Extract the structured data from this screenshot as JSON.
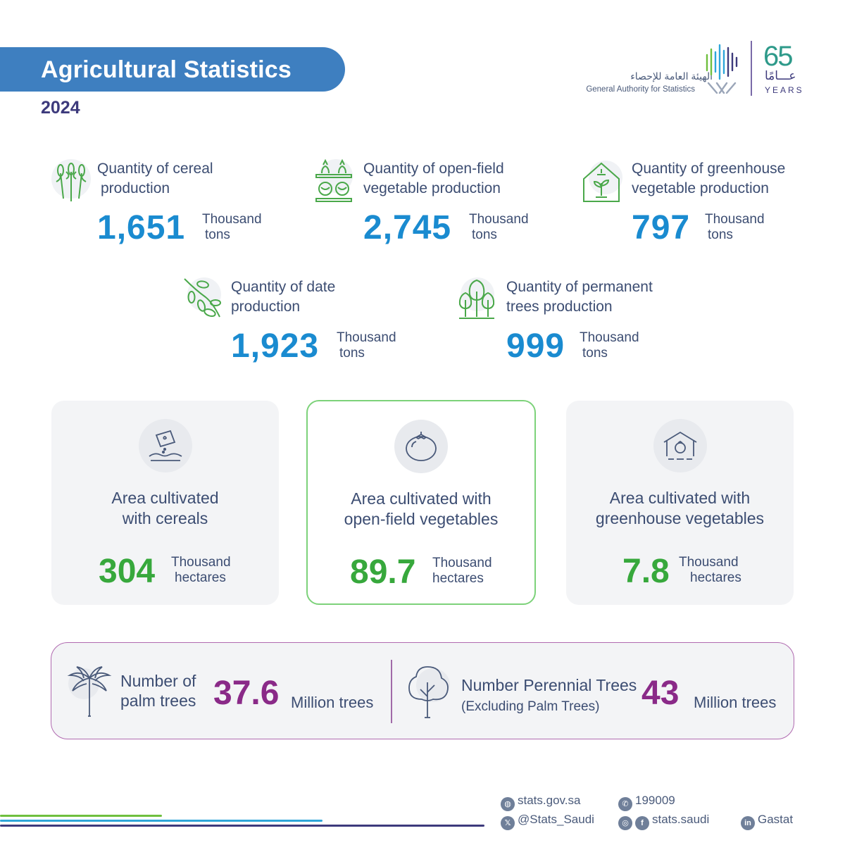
{
  "header": {
    "title": "Agricultural Statistics",
    "year": "2024"
  },
  "logo": {
    "arabic_name": "الهيئة العامة للإحصاء",
    "english_name": "General Authority for Statistics",
    "anniversary_number": "65",
    "anniversary_arabic": "عـــامًا",
    "anniversary_years": "YEARS"
  },
  "production": [
    {
      "icon": "wheat-icon",
      "label_line1": "Quantity of cereal",
      "label_line2": "production",
      "value": "1,651",
      "unit_line1": "Thousand",
      "unit_line2": "tons"
    },
    {
      "icon": "vegetable-crates-icon",
      "label_line1": "Quantity of open-field",
      "label_line2": "vegetable production",
      "value": "2,745",
      "unit_line1": "Thousand",
      "unit_line2": "tons"
    },
    {
      "icon": "greenhouse-icon",
      "label_line1": "Quantity of greenhouse",
      "label_line2": "vegetable production",
      "value": "797",
      "unit_line1": "Thousand",
      "unit_line2": "tons"
    },
    {
      "icon": "dates-icon",
      "label_line1": "Quantity of date",
      "label_line2": "production",
      "value": "1,923",
      "unit_line1": "Thousand",
      "unit_line2": "tons"
    },
    {
      "icon": "trees-icon",
      "label_line1": "Quantity of permanent",
      "label_line2": "trees production",
      "value": "999",
      "unit_line1": "Thousand",
      "unit_line2": "tons"
    }
  ],
  "areas": [
    {
      "icon": "seed-packet-icon",
      "label_line1": "Area cultivated",
      "label_line2": "with cereals",
      "value": "304",
      "unit_line1": "Thousand",
      "unit_line2": "hectares"
    },
    {
      "icon": "tomato-icon",
      "label_line1": "Area cultivated with",
      "label_line2": "open-field vegetables",
      "value": "89.7",
      "unit_line1": "Thousand",
      "unit_line2": "hectares"
    },
    {
      "icon": "greenhouse-tomato-icon",
      "label_line1": "Area cultivated with",
      "label_line2": "greenhouse vegetables",
      "value": "7.8",
      "unit_line1": "Thousand",
      "unit_line2": "hectares"
    }
  ],
  "trees": [
    {
      "icon": "palm-tree-icon",
      "label_line1": "Number of",
      "label_line2": "palm trees",
      "value": "37.6",
      "unit": "Million trees"
    },
    {
      "icon": "tree-icon",
      "label_line1": "Number Perennial Trees",
      "label_line2": "(Excluding Palm Trees)",
      "value": "43",
      "unit": "Million trees"
    }
  ],
  "footer": {
    "website": "stats.gov.sa",
    "phone": "199009",
    "x_handle": "@Stats_Saudi",
    "social_handle": "stats.saudi",
    "linkedin": "Gastat",
    "line_colors": [
      "#6fbf3e",
      "#2fa6d9",
      "#3d3a7c"
    ]
  },
  "colors": {
    "banner": "#3e7fc0",
    "production_value": "#1a8bd0",
    "area_value": "#37a83c",
    "tree_value": "#8a2a88",
    "icon_green": "#4aa84a"
  }
}
